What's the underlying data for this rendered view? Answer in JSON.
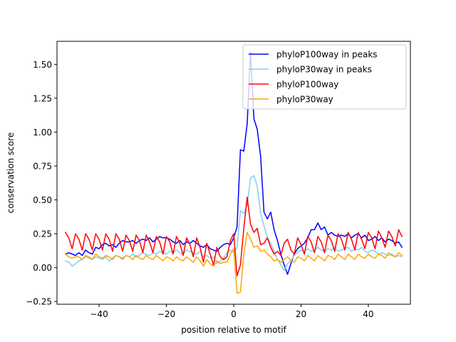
{
  "chart_data": {
    "type": "line",
    "title": "",
    "xlabel": "position relative to motif",
    "ylabel": "conservation score",
    "xlim": [
      -52.5,
      52.5
    ],
    "ylim": [
      -0.27,
      1.67
    ],
    "grid": false,
    "legend_position": "top-right",
    "x_ticks": [
      -40,
      -20,
      0,
      20,
      40
    ],
    "x_tick_labels": [
      "−40",
      "−20",
      "0",
      "20",
      "40"
    ],
    "y_ticks": [
      -0.25,
      0,
      0.25,
      0.5,
      0.75,
      1.0,
      1.25,
      1.5
    ],
    "y_tick_labels": [
      "−0.25",
      "0.00",
      "0.25",
      "0.50",
      "0.75",
      "1.00",
      "1.25",
      "1.50"
    ],
    "x": [
      -50,
      -49,
      -48,
      -47,
      -46,
      -45,
      -44,
      -43,
      -42,
      -41,
      -40,
      -39,
      -38,
      -37,
      -36,
      -35,
      -34,
      -33,
      -32,
      -31,
      -30,
      -29,
      -28,
      -27,
      -26,
      -25,
      -24,
      -23,
      -22,
      -21,
      -20,
      -19,
      -18,
      -17,
      -16,
      -15,
      -14,
      -13,
      -12,
      -11,
      -10,
      -9,
      -8,
      -7,
      -6,
      -5,
      -4,
      -3,
      -2,
      -1,
      0,
      1,
      2,
      3,
      4,
      5,
      6,
      7,
      8,
      9,
      10,
      11,
      12,
      13,
      14,
      15,
      16,
      17,
      18,
      19,
      20,
      21,
      22,
      23,
      24,
      25,
      26,
      27,
      28,
      29,
      30,
      31,
      32,
      33,
      34,
      35,
      36,
      37,
      38,
      39,
      40,
      41,
      42,
      43,
      44,
      45,
      46,
      47,
      48,
      49,
      50
    ],
    "series": [
      {
        "name": "phyloP100way in peaks",
        "color": "#0000ff",
        "values": [
          0.1,
          0.11,
          0.1,
          0.09,
          0.11,
          0.09,
          0.13,
          0.11,
          0.1,
          0.15,
          0.14,
          0.17,
          0.18,
          0.16,
          0.17,
          0.15,
          0.18,
          0.2,
          0.19,
          0.19,
          0.2,
          0.18,
          0.2,
          0.21,
          0.2,
          0.22,
          0.19,
          0.21,
          0.23,
          0.22,
          0.22,
          0.21,
          0.19,
          0.18,
          0.2,
          0.17,
          0.19,
          0.18,
          0.2,
          0.18,
          0.16,
          0.15,
          0.17,
          0.14,
          0.13,
          0.12,
          0.15,
          0.17,
          0.18,
          0.17,
          0.22,
          0.3,
          0.87,
          0.86,
          1.06,
          1.59,
          1.1,
          1.02,
          0.82,
          0.41,
          0.36,
          0.41,
          0.28,
          0.2,
          0.1,
          0.02,
          -0.05,
          0.03,
          0.1,
          0.14,
          0.16,
          0.18,
          0.22,
          0.28,
          0.28,
          0.33,
          0.28,
          0.3,
          0.24,
          0.26,
          0.24,
          0.23,
          0.24,
          0.23,
          0.25,
          0.22,
          0.24,
          0.25,
          0.22,
          0.24,
          0.2,
          0.21,
          0.23,
          0.2,
          0.22,
          0.19,
          0.21,
          0.2,
          0.18,
          0.19,
          0.15
        ]
      },
      {
        "name": "phyloP30way in peaks",
        "color": "#87ceeb",
        "values": [
          0.05,
          0.04,
          0.01,
          0.03,
          0.05,
          0.06,
          0.08,
          0.07,
          0.06,
          0.08,
          0.07,
          0.06,
          0.08,
          0.05,
          0.07,
          0.09,
          0.08,
          0.07,
          0.09,
          0.08,
          0.1,
          0.08,
          0.09,
          0.11,
          0.1,
          0.09,
          0.11,
          0.1,
          0.12,
          0.11,
          0.1,
          0.12,
          0.11,
          0.13,
          0.11,
          0.1,
          0.13,
          0.12,
          0.11,
          0.1,
          0.12,
          0.08,
          0.09,
          0.07,
          0.08,
          0.03,
          0.05,
          0.07,
          0.11,
          0.13,
          0.11,
          0.15,
          0.42,
          0.4,
          0.46,
          0.66,
          0.68,
          0.6,
          0.4,
          0.31,
          0.22,
          0.18,
          0.12,
          0.06,
          0.02,
          -0.02,
          0.03,
          0.05,
          0.09,
          0.11,
          0.13,
          0.12,
          0.14,
          0.12,
          0.13,
          0.15,
          0.13,
          0.12,
          0.14,
          0.13,
          0.15,
          0.12,
          0.13,
          0.14,
          0.15,
          0.12,
          0.14,
          0.13,
          0.15,
          0.12,
          0.11,
          0.13,
          0.12,
          0.1,
          0.11,
          0.1,
          0.09,
          0.1,
          0.08,
          0.09,
          0.08
        ]
      },
      {
        "name": "phyloP100way",
        "color": "#ff0000",
        "values": [
          0.26,
          0.22,
          0.14,
          0.25,
          0.21,
          0.13,
          0.25,
          0.21,
          0.13,
          0.25,
          0.21,
          0.13,
          0.25,
          0.21,
          0.12,
          0.25,
          0.21,
          0.12,
          0.24,
          0.2,
          0.12,
          0.24,
          0.2,
          0.11,
          0.24,
          0.19,
          0.11,
          0.23,
          0.19,
          0.1,
          0.23,
          0.19,
          0.1,
          0.23,
          0.18,
          0.09,
          0.22,
          0.17,
          0.08,
          0.22,
          0.15,
          0.04,
          0.18,
          0.1,
          0.02,
          0.15,
          0.08,
          0.06,
          0.08,
          0.2,
          0.25,
          -0.06,
          0.02,
          0.29,
          0.52,
          0.32,
          0.26,
          0.29,
          0.17,
          0.18,
          0.22,
          0.15,
          0.1,
          0.12,
          0.09,
          0.18,
          0.21,
          0.13,
          0.1,
          0.22,
          0.17,
          0.1,
          0.23,
          0.19,
          0.11,
          0.23,
          0.19,
          0.11,
          0.24,
          0.2,
          0.12,
          0.25,
          0.21,
          0.13,
          0.26,
          0.21,
          0.13,
          0.26,
          0.21,
          0.14,
          0.26,
          0.22,
          0.14,
          0.27,
          0.22,
          0.15,
          0.27,
          0.23,
          0.16,
          0.28,
          0.23
        ]
      },
      {
        "name": "phyloP30way",
        "color": "#ffa500",
        "values": [
          0.1,
          0.08,
          0.07,
          0.08,
          0.08,
          0.06,
          0.09,
          0.08,
          0.06,
          0.1,
          0.08,
          0.07,
          0.09,
          0.08,
          0.06,
          0.09,
          0.08,
          0.06,
          0.09,
          0.08,
          0.06,
          0.09,
          0.07,
          0.06,
          0.09,
          0.07,
          0.06,
          0.09,
          0.07,
          0.05,
          0.08,
          0.07,
          0.05,
          0.08,
          0.06,
          0.05,
          0.08,
          0.06,
          0.04,
          0.08,
          0.05,
          0.01,
          0.06,
          0.03,
          0.01,
          0.05,
          0.03,
          0.04,
          0.04,
          0.1,
          0.14,
          -0.19,
          -0.18,
          0.1,
          0.26,
          0.21,
          0.15,
          0.16,
          0.12,
          0.13,
          0.1,
          0.08,
          0.05,
          0.06,
          0.04,
          0.06,
          0.08,
          0.05,
          0.04,
          0.08,
          0.07,
          0.05,
          0.09,
          0.07,
          0.05,
          0.09,
          0.07,
          0.05,
          0.09,
          0.08,
          0.06,
          0.1,
          0.08,
          0.06,
          0.1,
          0.08,
          0.06,
          0.1,
          0.08,
          0.07,
          0.1,
          0.08,
          0.07,
          0.1,
          0.09,
          0.07,
          0.11,
          0.09,
          0.08,
          0.11,
          0.09
        ]
      }
    ]
  }
}
